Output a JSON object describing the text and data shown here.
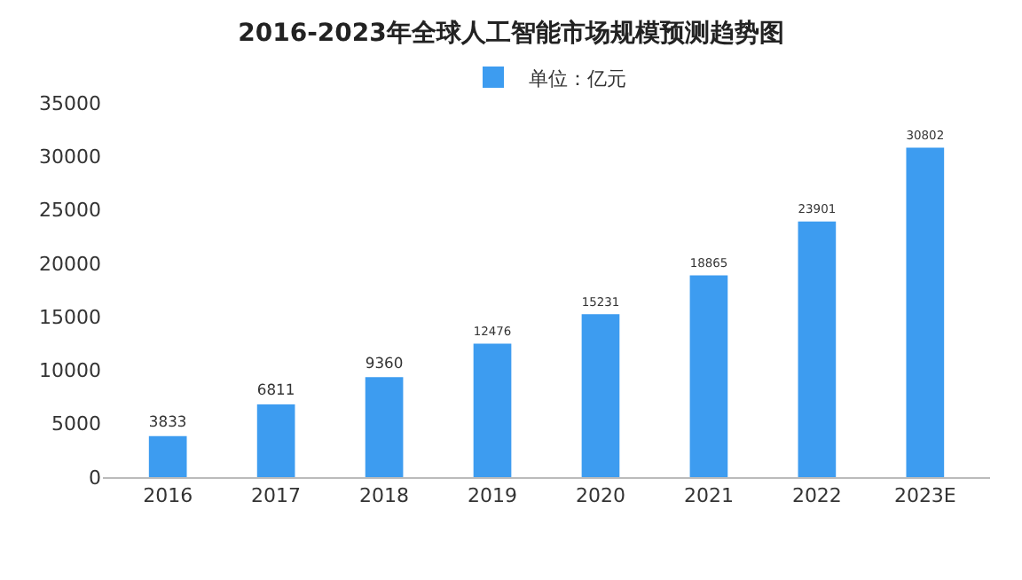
{
  "chart_data": {
    "type": "bar",
    "title": "2016-2023年全球人工智能市场规模预测趋势图",
    "categories": [
      "2016",
      "2017",
      "2018",
      "2019",
      "2020",
      "2021",
      "2022",
      "2023E"
    ],
    "series": [
      {
        "name": "单位：亿元",
        "color": "#3d9cf0",
        "values": [
          3833,
          6811,
          9360,
          12476,
          15231,
          18865,
          23901,
          30802
        ]
      }
    ],
    "ylim": [
      0,
      35000
    ],
    "yticks": [
      0,
      5000,
      10000,
      15000,
      20000,
      25000,
      30000,
      35000
    ],
    "data_labels": true,
    "legend": "top",
    "grid": false
  }
}
